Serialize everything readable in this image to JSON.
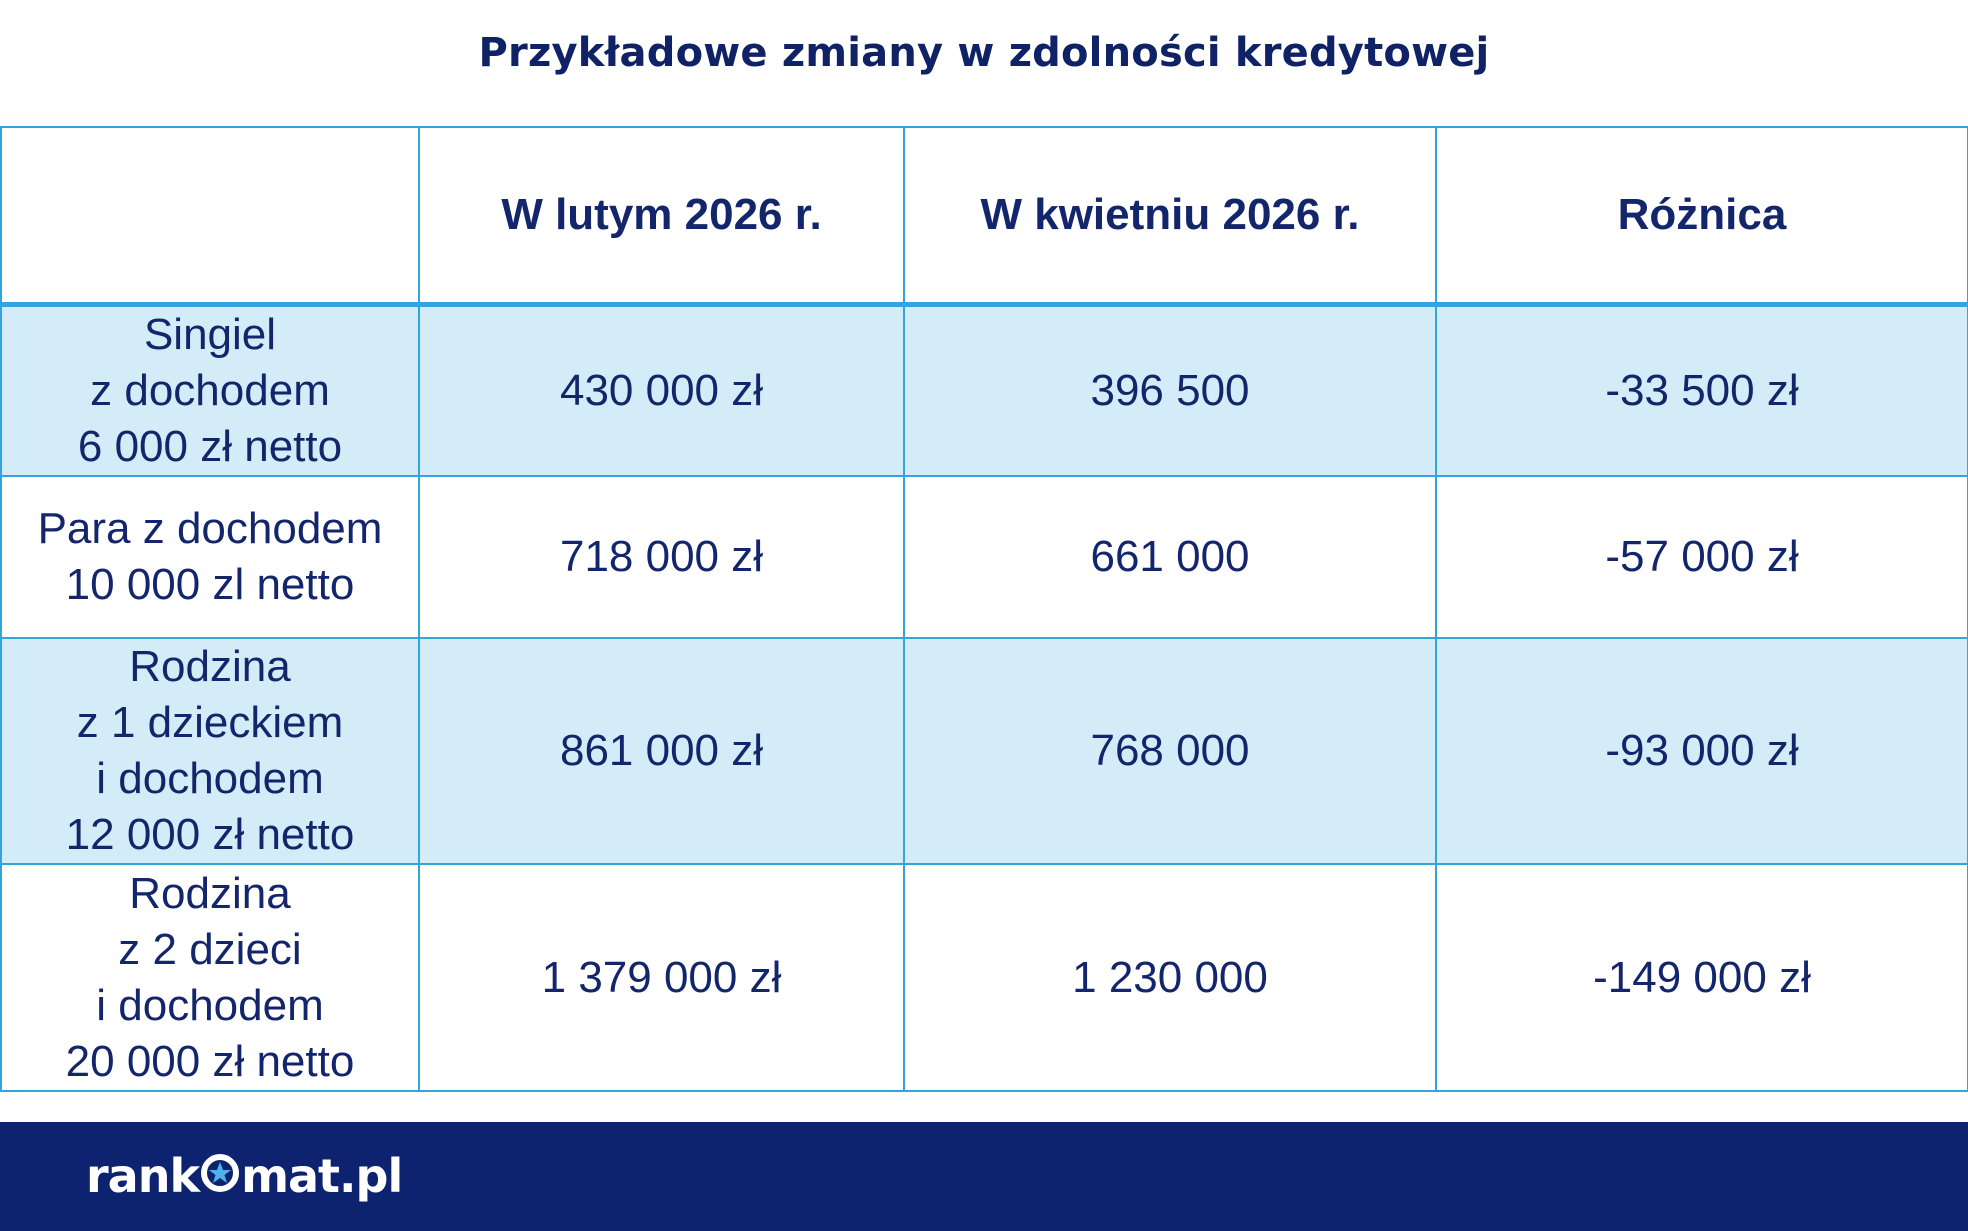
{
  "title": "Przykładowe zmiany w zdolności kredytowej",
  "chart_data": {
    "type": "table",
    "title": "Przykładowe zmiany w zdolności kredytowej",
    "columns": [
      "",
      "W lutym 2026 r.",
      "W kwietniu 2026 r.",
      "Różnica"
    ],
    "rows": [
      {
        "label_lines": [
          "Singiel",
          "z dochodem",
          "6 000 zł netto"
        ],
        "cells": [
          "430 000 zł",
          "396 500",
          "-33 500 zł"
        ]
      },
      {
        "label_lines": [
          "Para z dochodem",
          "10 000 zl netto"
        ],
        "cells": [
          "718 000 zł",
          "661 000",
          "-57 000 zł"
        ]
      },
      {
        "label_lines": [
          "Rodzina",
          "z 1 dzieckiem",
          "i dochodem",
          "12 000 zł netto"
        ],
        "cells": [
          "861 000 zł",
          "768 000",
          "-93 000 zł"
        ]
      },
      {
        "label_lines": [
          "Rodzina",
          "z 2 dzieci",
          "i dochodem",
          "20 000 zł netto"
        ],
        "cells": [
          "1 379 000 zł",
          "1 230 000",
          "-149 000 zł"
        ]
      }
    ]
  },
  "footer": {
    "logo_part1": "rank",
    "logo_icon": "star-ring-icon",
    "logo_part2": "mat.pl"
  },
  "colors": {
    "title": "#0f2266",
    "border": "#35a4dc",
    "shaded_row": "#d4ecf7",
    "footer": "#0e2370",
    "logo": "#ffffff"
  }
}
